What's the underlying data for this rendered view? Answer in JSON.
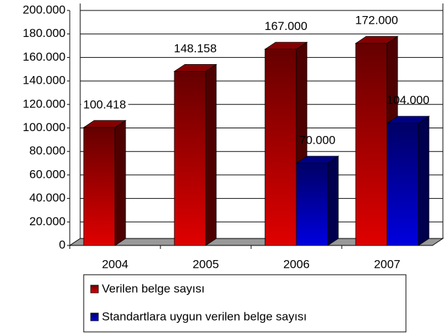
{
  "chart_data": {
    "type": "bar3d",
    "categories": [
      "2004",
      "2005",
      "2006",
      "2007"
    ],
    "series": [
      {
        "name": "Verilen belge sayısı",
        "color": "#e00000",
        "values": [
          100418,
          148158,
          167000,
          172000
        ],
        "value_labels": [
          "100.418",
          "148.158",
          "167.000",
          "172.000"
        ]
      },
      {
        "name": "Standartlara uygun verilen belge sayısı",
        "color": "#0000e0",
        "values": [
          null,
          null,
          70000,
          104000
        ],
        "value_labels": [
          null,
          null,
          "70.000",
          "104.000"
        ]
      }
    ],
    "ylim": [
      0,
      200000
    ],
    "yticks": [
      0,
      {
        "value": 20000,
        "label": "20.000"
      },
      {
        "value": 40000,
        "label": "40.000"
      },
      {
        "value": 60000,
        "label": "60.000"
      },
      {
        "value": 80000,
        "label": "80.000"
      },
      {
        "value": 100000,
        "label": "100.000"
      },
      {
        "value": 120000,
        "label": "120.000"
      },
      {
        "value": 140000,
        "label": "140.000"
      },
      {
        "value": 160000,
        "label": "160.000"
      },
      {
        "value": 180000,
        "label": "180.000"
      },
      {
        "value": 200000,
        "label": "200.000"
      }
    ],
    "grid": true,
    "legend": "bottom"
  }
}
